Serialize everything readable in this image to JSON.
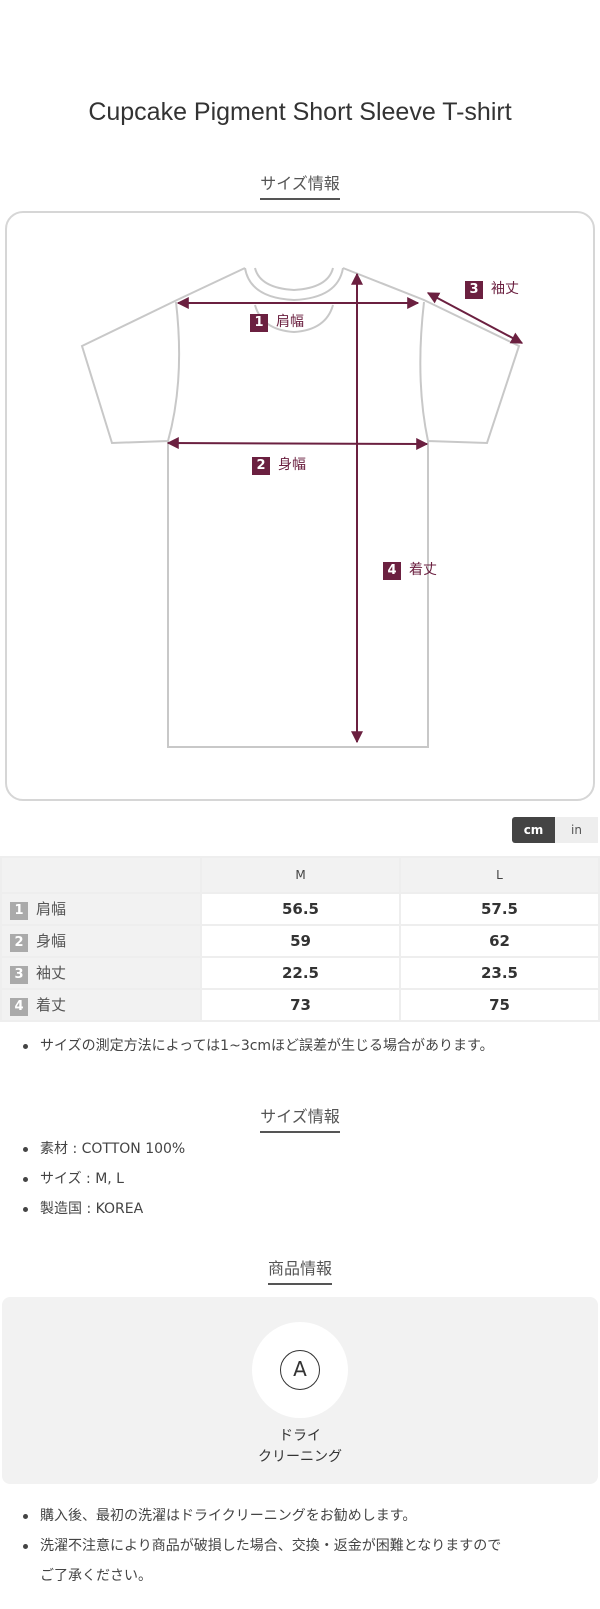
{
  "title": "Cupcake Pigment Short Sleeve T-shirt",
  "size_section_title": "サイズ情報",
  "diagram": {
    "accent_color": "#6b2040",
    "labels": [
      {
        "num": "1",
        "text": "肩幅"
      },
      {
        "num": "2",
        "text": "身幅"
      },
      {
        "num": "3",
        "text": "袖丈"
      },
      {
        "num": "4",
        "text": "着丈"
      }
    ]
  },
  "unit_toggle": {
    "cm": "cm",
    "in": "in",
    "selected": "cm"
  },
  "table": {
    "headers": [
      "",
      "M",
      "L"
    ],
    "rows": [
      {
        "num": "1",
        "label": "肩幅",
        "values": [
          "56.5",
          "57.5"
        ]
      },
      {
        "num": "2",
        "label": "身幅",
        "values": [
          "59",
          "62"
        ]
      },
      {
        "num": "3",
        "label": "袖丈",
        "values": [
          "22.5",
          "23.5"
        ]
      },
      {
        "num": "4",
        "label": "着丈",
        "values": [
          "73",
          "75"
        ]
      }
    ]
  },
  "size_note": "サイズの測定方法によっては1~3cmほど誤差が生じる場合があります。",
  "info_section_title": "サイズ情報",
  "info": [
    "素材 : COTTON 100%",
    "サイズ : M, L",
    "製造国 : KOREA"
  ],
  "product_section_title": "商品情報",
  "care": {
    "icon_letter": "A",
    "label_line1": "ドライ",
    "label_line2": "クリーニング"
  },
  "notes": [
    "購入後、最初の洗濯はドライクリーニングをお勧めします。",
    "洗濯不注意により商品が破損した場合、交換・返金が困難となりますので",
    "ご了承ください。"
  ]
}
